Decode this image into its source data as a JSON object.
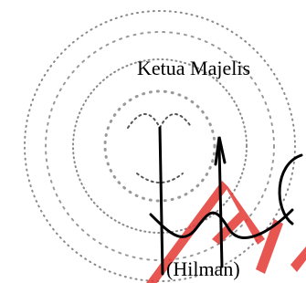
{
  "signature_block": {
    "position": "Ketua Majelis",
    "name": "(Hilman)"
  }
}
